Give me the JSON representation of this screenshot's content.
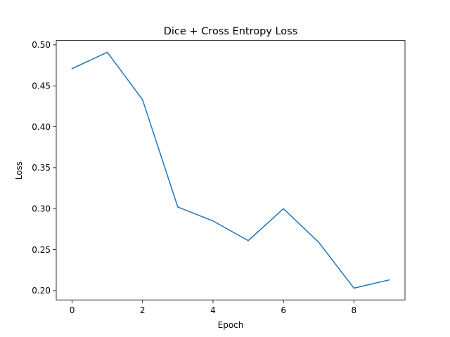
{
  "chart_data": {
    "type": "line",
    "title": "Dice + Cross Entropy Loss",
    "xlabel": "Epoch",
    "ylabel": "Loss",
    "x": [
      0,
      1,
      2,
      3,
      4,
      5,
      6,
      7,
      8,
      9
    ],
    "series": [
      {
        "values": [
          0.471,
          0.491,
          0.433,
          0.302,
          0.285,
          0.261,
          0.3,
          0.259,
          0.203,
          0.213
        ],
        "color": "#1f77b4"
      }
    ],
    "xlim": [
      -0.45,
      9.45
    ],
    "ylim": [
      0.1886,
      0.5054
    ],
    "xticks": [
      0,
      2,
      4,
      6,
      8
    ],
    "xtick_labels": [
      "0",
      "2",
      "4",
      "6",
      "8"
    ],
    "yticks": [
      0.2,
      0.25,
      0.3,
      0.35,
      0.4,
      0.45,
      0.5
    ],
    "ytick_labels": [
      "0.20",
      "0.25",
      "0.30",
      "0.35",
      "0.40",
      "0.45",
      "0.50"
    ],
    "grid": false,
    "legend": "none"
  }
}
